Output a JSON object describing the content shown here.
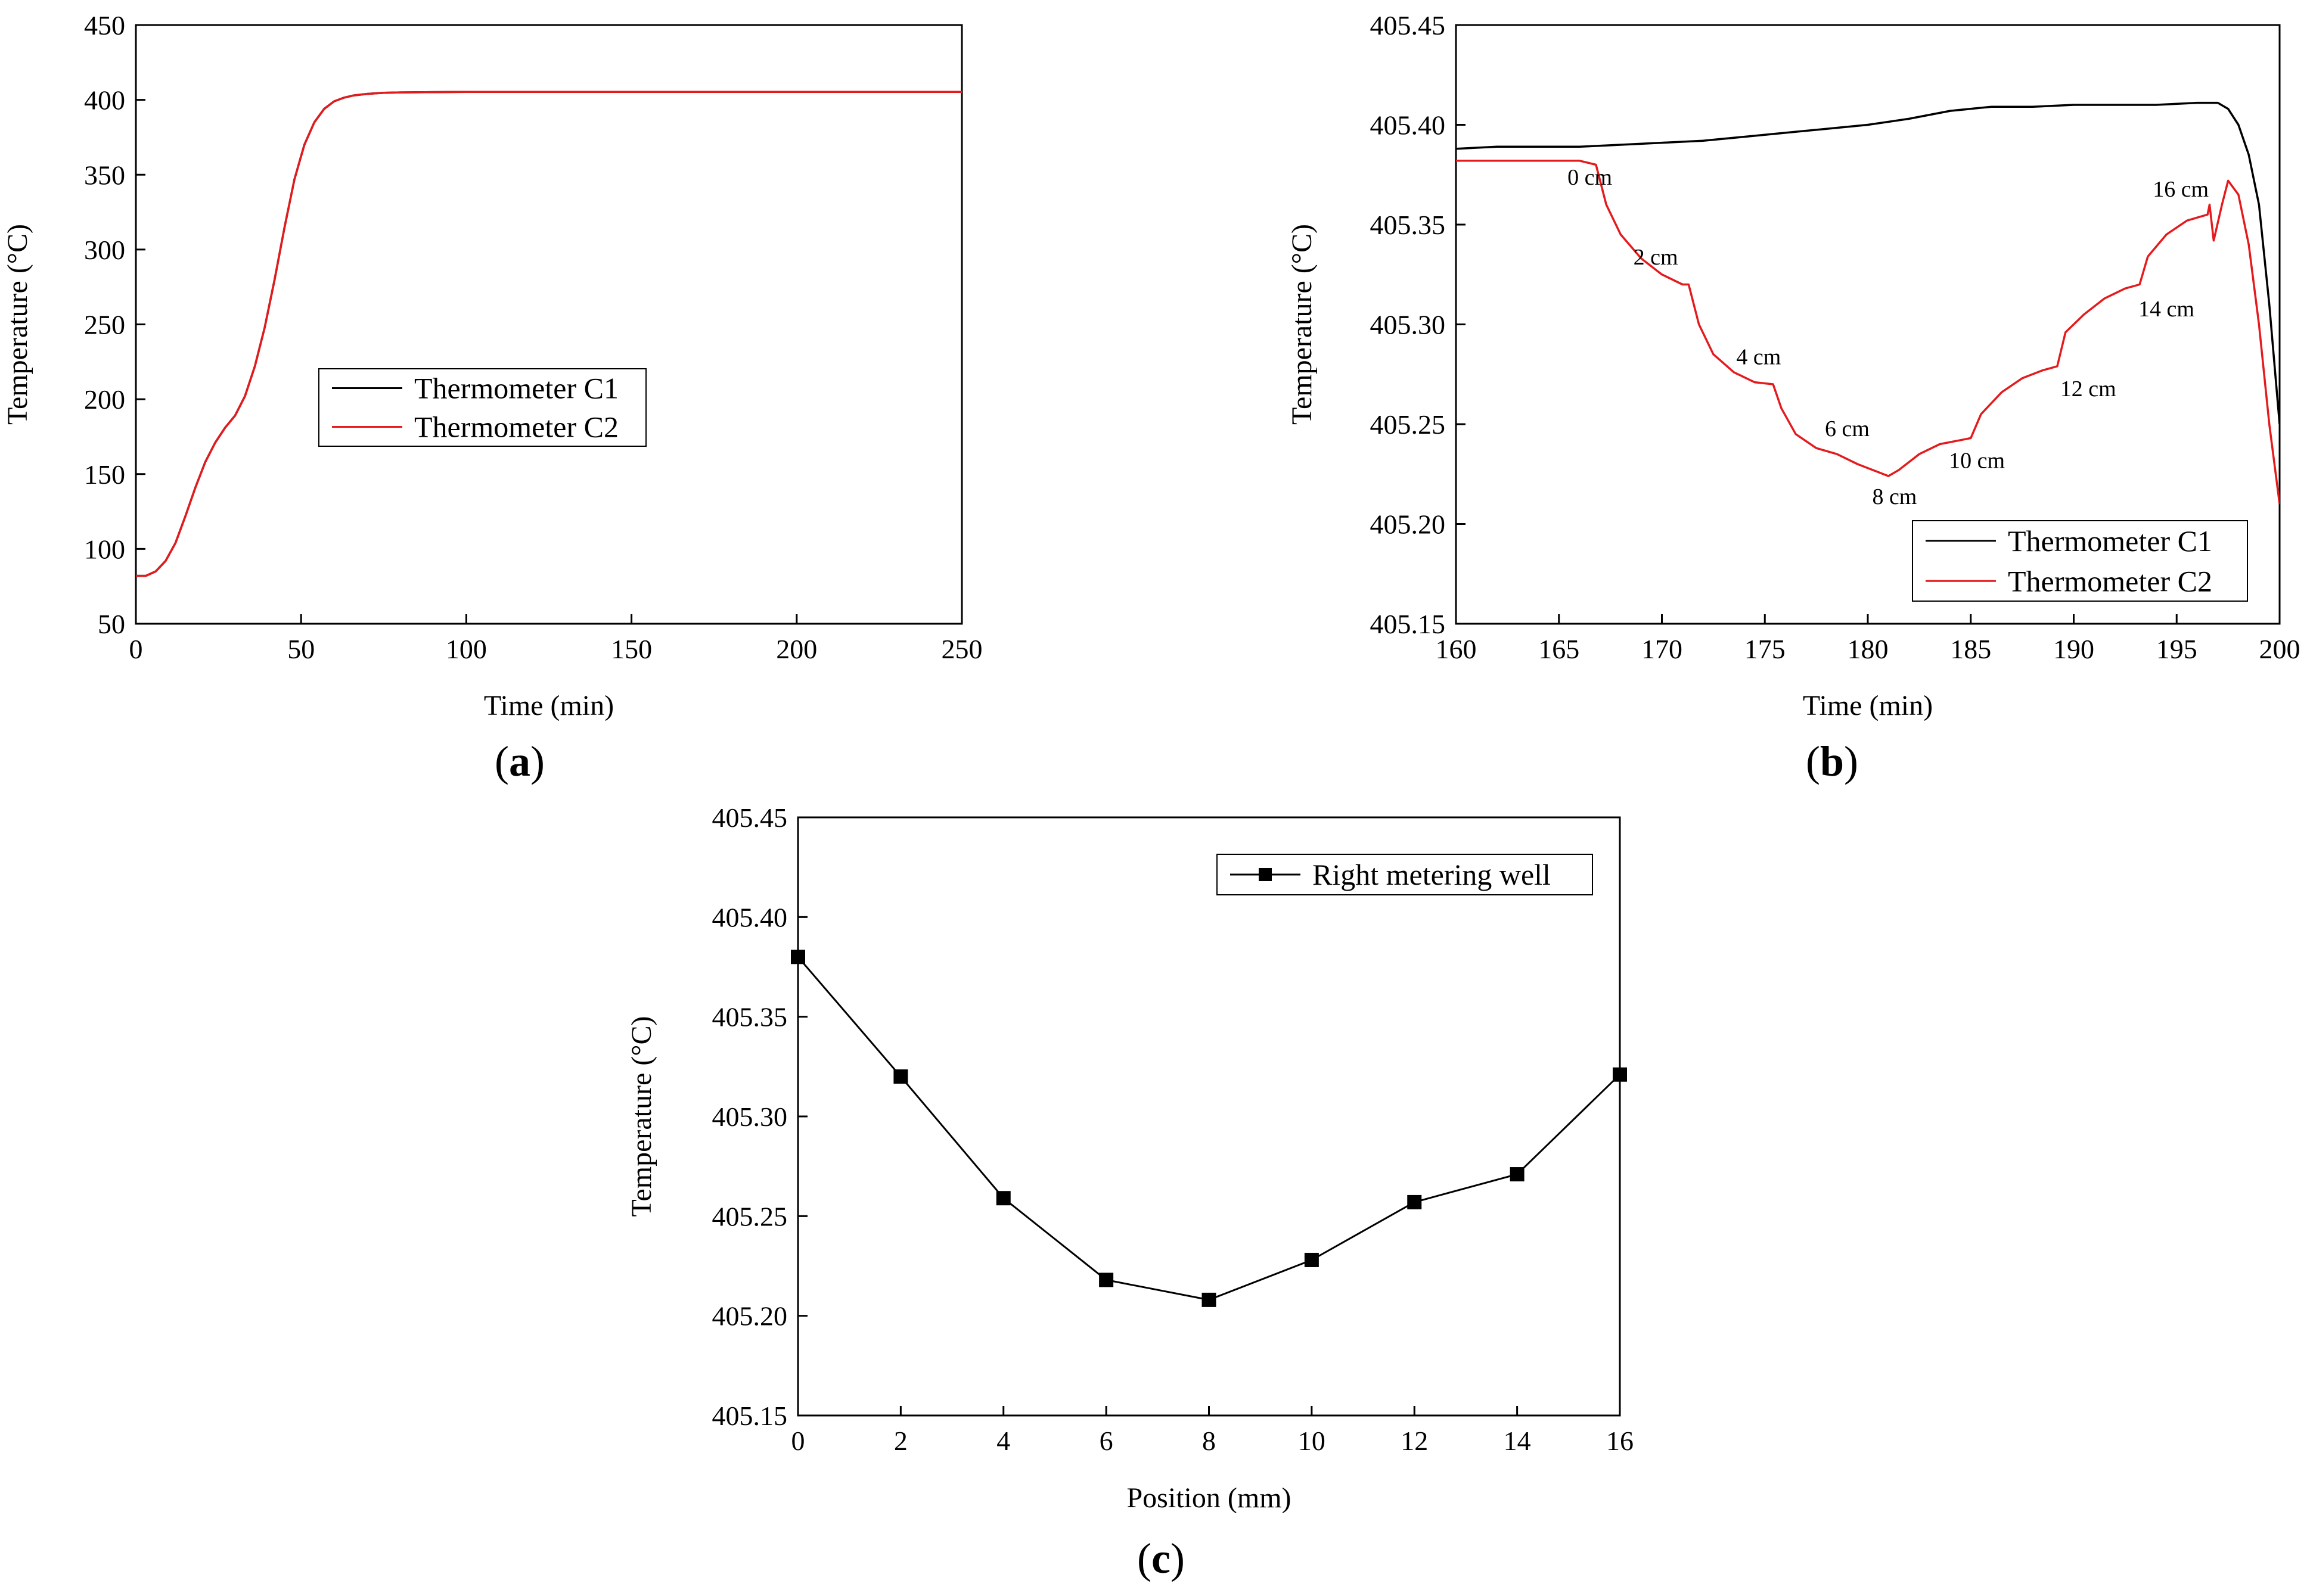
{
  "chart_data": [
    {
      "panel": "a",
      "type": "line",
      "panel_label": [
        "(",
        "a",
        ")"
      ],
      "xlabel": "Time (min)",
      "ylabel": "Temperature (°C)",
      "xlim": [
        0,
        250
      ],
      "ylim": [
        50,
        450
      ],
      "xticks": [
        0,
        50,
        100,
        150,
        200,
        250
      ],
      "yticks": [
        50,
        100,
        150,
        200,
        250,
        300,
        350,
        400,
        450
      ],
      "grid": false,
      "legend_position": "center-left",
      "series": [
        {
          "name": "Thermometer C1",
          "color": "#000000",
          "x": [
            0,
            3,
            6,
            9,
            12,
            15,
            18,
            21,
            24,
            27,
            30,
            33,
            36,
            39,
            42,
            45,
            48,
            51,
            54,
            57,
            60,
            63,
            66,
            70,
            75,
            80,
            90,
            100,
            125,
            150,
            175,
            200,
            225,
            250
          ],
          "y": [
            82,
            82,
            85,
            92,
            104,
            122,
            141,
            158,
            171,
            181,
            189,
            202,
            222,
            248,
            280,
            315,
            347,
            370,
            385,
            394,
            399,
            401.5,
            403,
            404,
            404.7,
            405,
            405.2,
            405.3,
            405.3,
            405.3,
            405.3,
            405.3,
            405.3,
            405.3
          ]
        },
        {
          "name": "Thermometer C2",
          "color": "#e41a1c",
          "x": [
            0,
            3,
            6,
            9,
            12,
            15,
            18,
            21,
            24,
            27,
            30,
            33,
            36,
            39,
            42,
            45,
            48,
            51,
            54,
            57,
            60,
            63,
            66,
            70,
            75,
            80,
            90,
            100,
            125,
            150,
            175,
            200,
            225,
            250
          ],
          "y": [
            82,
            82,
            85,
            92,
            104,
            122,
            141,
            158,
            171,
            181,
            189,
            202,
            222,
            248,
            280,
            315,
            347,
            370,
            385,
            394,
            399,
            401.5,
            403,
            404,
            404.7,
            405,
            405.2,
            405.3,
            405.3,
            405.3,
            405.3,
            405.3,
            405.3,
            405.3
          ]
        }
      ]
    },
    {
      "panel": "b",
      "type": "line",
      "panel_label": [
        "(",
        "b",
        ")"
      ],
      "xlabel": "Time (min)",
      "ylabel": "Temperature (°C)",
      "xlim": [
        160,
        200
      ],
      "ylim": [
        405.15,
        405.45
      ],
      "xticks": [
        160,
        165,
        170,
        175,
        180,
        185,
        190,
        195,
        200
      ],
      "yticks": [
        "405.15",
        "405.20",
        "405.25",
        "405.30",
        "405.35",
        "405.40",
        "405.45"
      ],
      "grid": false,
      "legend_position": "bottom-right",
      "series": [
        {
          "name": "Thermometer C1",
          "color": "#000000",
          "x": [
            160,
            162,
            164,
            166,
            168,
            170,
            172,
            174,
            176,
            178,
            180,
            182,
            184,
            186,
            188,
            190,
            192,
            194,
            196,
            197,
            197.5,
            198,
            198.5,
            199,
            199.5,
            200
          ],
          "y": [
            405.388,
            405.389,
            405.389,
            405.389,
            405.39,
            405.391,
            405.392,
            405.394,
            405.396,
            405.398,
            405.4,
            405.403,
            405.407,
            405.409,
            405.409,
            405.41,
            405.41,
            405.41,
            405.411,
            405.411,
            405.408,
            405.4,
            405.385,
            405.36,
            405.31,
            405.25
          ]
        },
        {
          "name": "Thermometer C2",
          "color": "#e41a1c",
          "x": [
            160,
            163,
            166,
            166.8,
            167.3,
            168,
            169,
            170,
            171,
            171.3,
            171.8,
            172.5,
            173.5,
            174.5,
            175.4,
            175.8,
            176.5,
            177.5,
            178.5,
            179.5,
            180.5,
            181,
            181.5,
            182.5,
            183.5,
            184.5,
            185,
            185.5,
            186.5,
            187.5,
            188.5,
            189.2,
            189.6,
            190.5,
            191.5,
            192.5,
            193.2,
            193.6,
            194.5,
            195.5,
            196.5,
            196.6,
            196.8,
            197.2,
            197.5,
            198,
            198.5,
            199,
            199.5,
            200
          ],
          "y": [
            405.382,
            405.382,
            405.382,
            405.38,
            405.36,
            405.345,
            405.333,
            405.325,
            405.32,
            405.32,
            405.3,
            405.285,
            405.276,
            405.271,
            405.27,
            405.258,
            405.245,
            405.238,
            405.235,
            405.23,
            405.226,
            405.224,
            405.227,
            405.235,
            405.24,
            405.242,
            405.243,
            405.255,
            405.266,
            405.273,
            405.277,
            405.279,
            405.296,
            405.305,
            405.313,
            405.318,
            405.32,
            405.334,
            405.345,
            405.352,
            405.355,
            405.36,
            405.342,
            405.36,
            405.372,
            405.365,
            405.34,
            405.3,
            405.25,
            405.21
          ]
        }
      ],
      "annotations": [
        {
          "text": "0 cm",
          "x": 166.5,
          "y": 405.37
        },
        {
          "text": "2 cm",
          "x": 169.7,
          "y": 405.33
        },
        {
          "text": "4 cm",
          "x": 174.7,
          "y": 405.28
        },
        {
          "text": "6 cm",
          "x": 179.0,
          "y": 405.244
        },
        {
          "text": "8 cm",
          "x": 181.3,
          "y": 405.21
        },
        {
          "text": "10 cm",
          "x": 185.3,
          "y": 405.228
        },
        {
          "text": "12 cm",
          "x": 190.7,
          "y": 405.264
        },
        {
          "text": "14 cm",
          "x": 194.5,
          "y": 405.304
        },
        {
          "text": "16 cm",
          "x": 195.2,
          "y": 405.364
        }
      ]
    },
    {
      "panel": "c",
      "type": "line",
      "panel_label": [
        "(",
        "c",
        ")"
      ],
      "xlabel": "Position (mm)",
      "ylabel": "Temperature (°C)",
      "xlim": [
        0,
        16
      ],
      "ylim": [
        405.15,
        405.45
      ],
      "xticks": [
        0,
        2,
        4,
        6,
        8,
        10,
        12,
        14,
        16
      ],
      "yticks": [
        "405.15",
        "405.20",
        "405.25",
        "405.30",
        "405.35",
        "405.40",
        "405.45"
      ],
      "grid": false,
      "legend_position": "top-right",
      "series": [
        {
          "name": "Right metering well",
          "color": "#000000",
          "marker": "square",
          "x": [
            0,
            2,
            4,
            6,
            8,
            10,
            12,
            14,
            16
          ],
          "y": [
            405.38,
            405.32,
            405.259,
            405.218,
            405.208,
            405.228,
            405.257,
            405.271,
            405.321
          ]
        }
      ]
    }
  ]
}
